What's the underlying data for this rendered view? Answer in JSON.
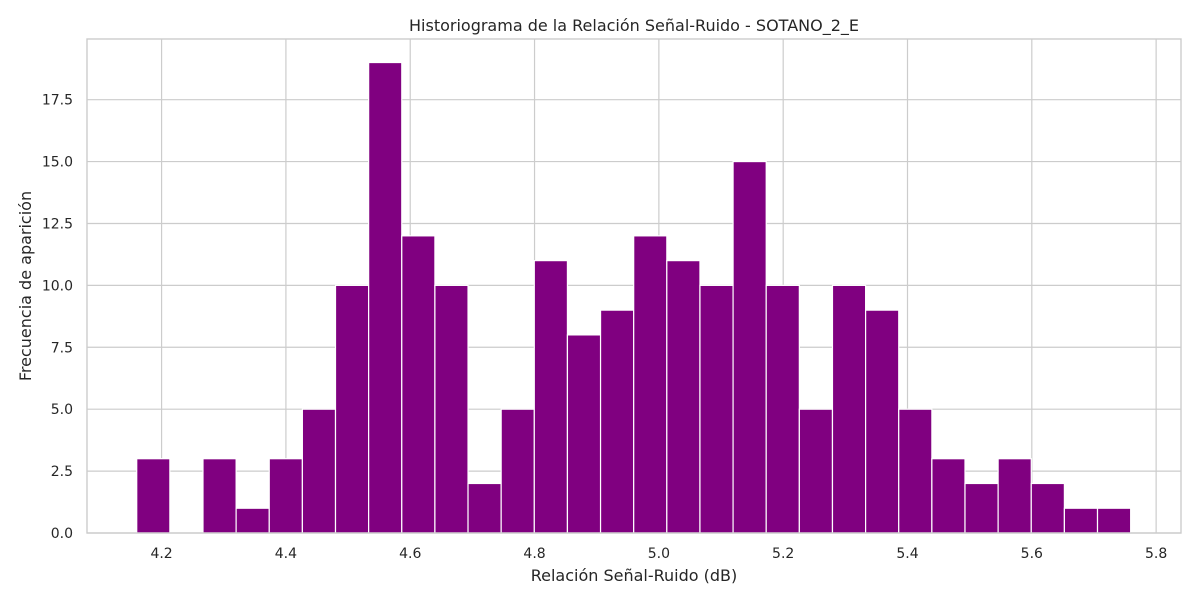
{
  "chart_data": {
    "type": "bar",
    "title": "Historiograma de la Relación Señal-Ruido - SOTANO_2_E",
    "xlabel": "Relación Señal-Ruido (dB)",
    "ylabel": "Frecuencia de aparición",
    "xlim": [
      4.08,
      5.84
    ],
    "ylim": [
      0,
      19.95
    ],
    "x_ticks": [
      "4.2",
      "4.4",
      "4.6",
      "4.8",
      "5.0",
      "5.2",
      "5.4",
      "5.6",
      "5.8"
    ],
    "y_ticks": [
      "0.0",
      "2.5",
      "5.0",
      "7.5",
      "10.0",
      "12.5",
      "15.0",
      "17.5"
    ],
    "bin_start": 4.16,
    "bin_width": 0.0533,
    "values": [
      3,
      0,
      3,
      1,
      3,
      5,
      10,
      19,
      12,
      10,
      2,
      5,
      11,
      8,
      9,
      12,
      11,
      10,
      15,
      10,
      5,
      10,
      9,
      5,
      3,
      2,
      3,
      2,
      1,
      1
    ],
    "bar_color": "#800080",
    "grid": true,
    "legend": false
  }
}
